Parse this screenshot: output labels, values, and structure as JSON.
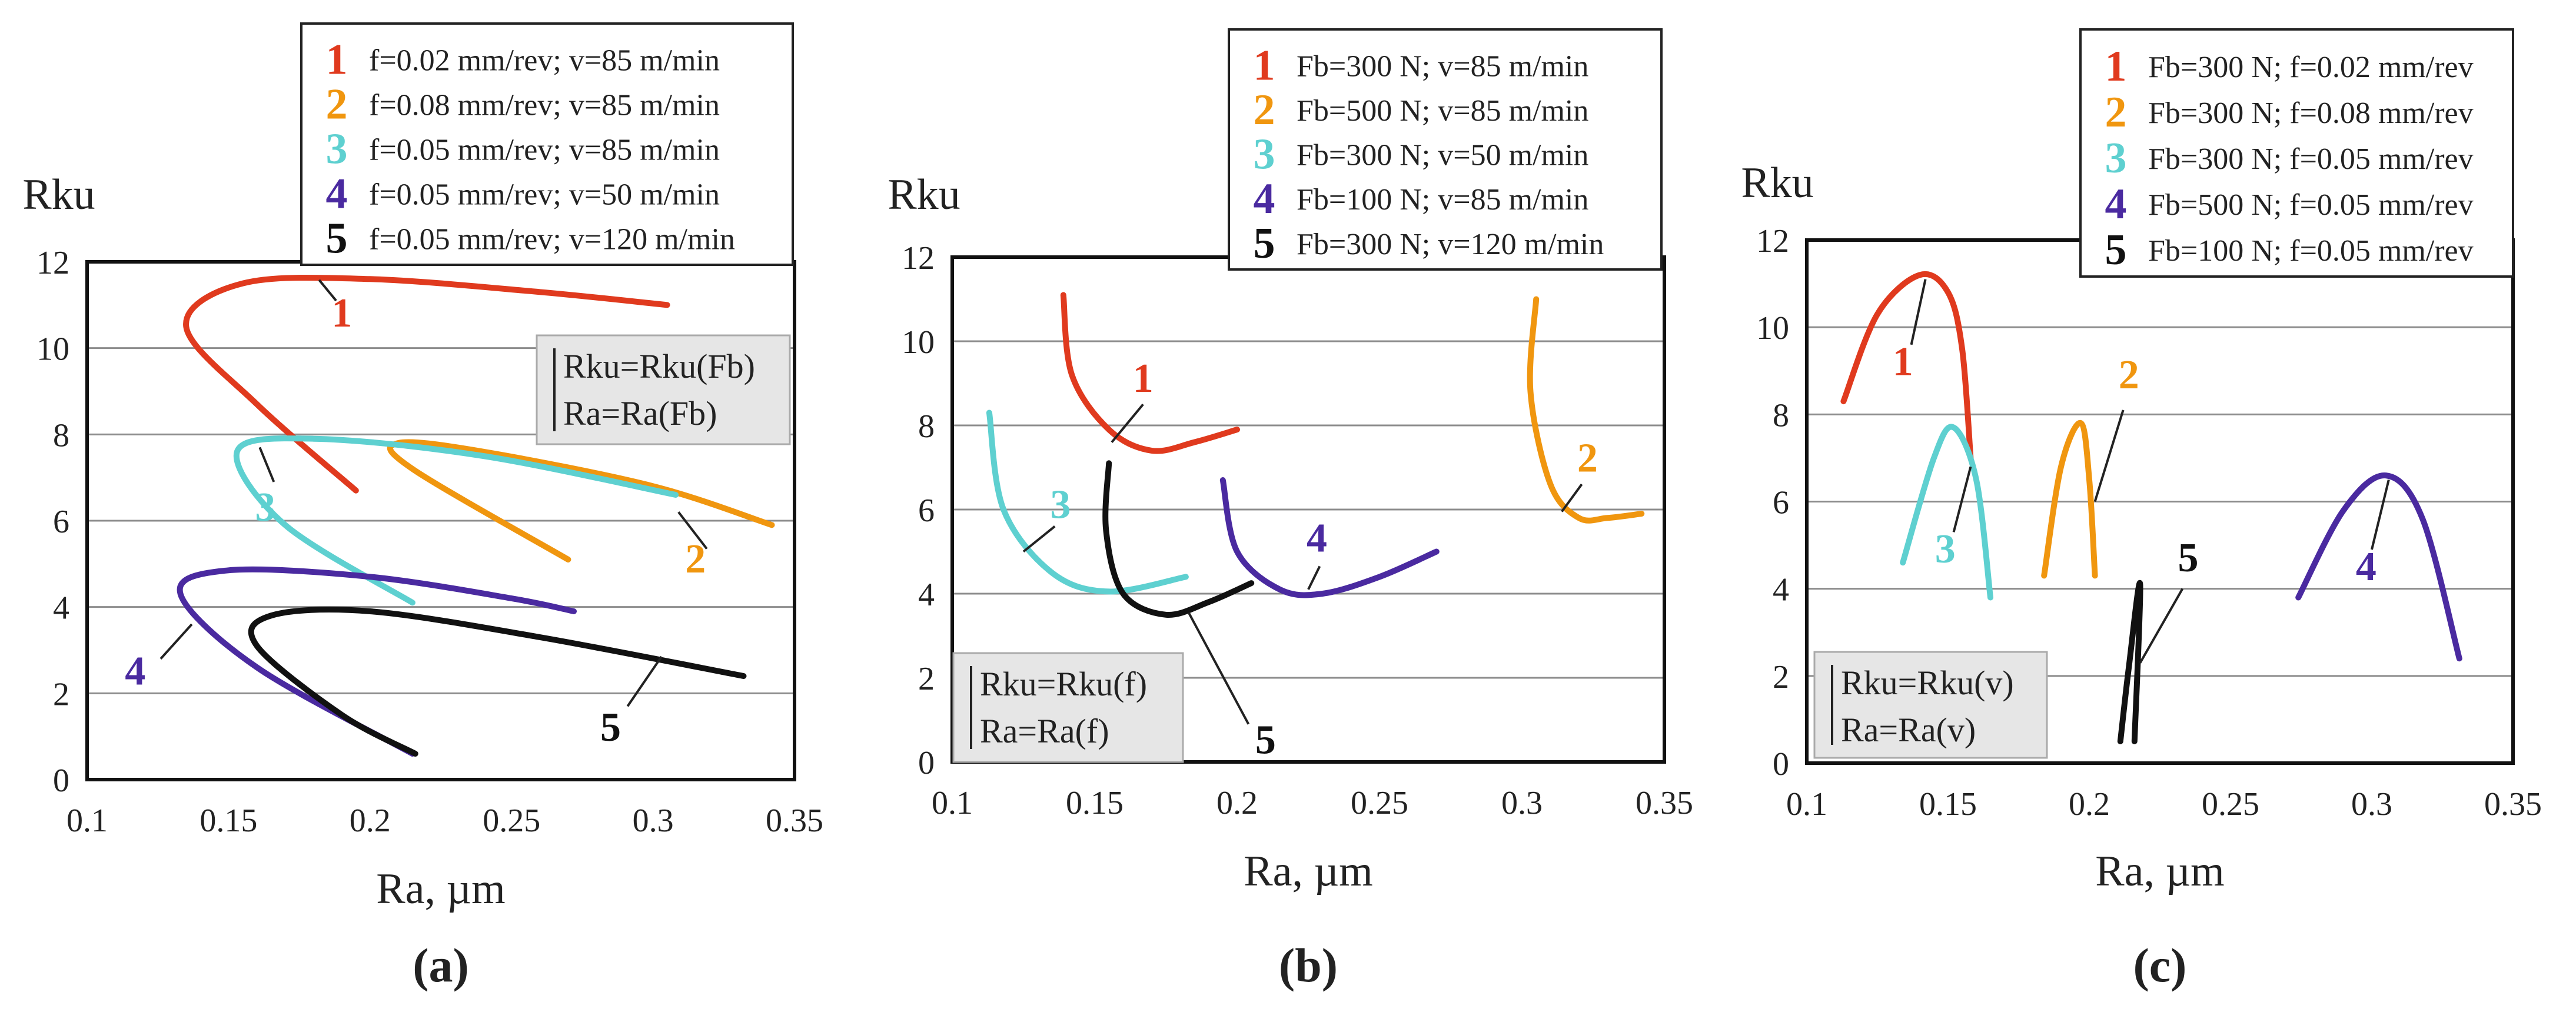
{
  "chart_data": [
    {
      "type": "line",
      "panel_label": "(a)",
      "title": "",
      "ylabel": "Rku",
      "xlabel": "Ra, µm",
      "xlim": [
        0.1,
        0.35
      ],
      "ylim": [
        0,
        12
      ],
      "xticks": [
        "0.1",
        "0.15",
        "0.2",
        "0.25",
        "0.3",
        "0.35"
      ],
      "yticks": [
        "0",
        "2",
        "4",
        "6",
        "8",
        "10",
        "12"
      ],
      "info_lines": [
        "Rku=Rku(Fb)",
        "Ra=Ra(Fb)"
      ],
      "series": [
        {
          "id": "1",
          "name": "f=0.02 mm/rev; v=85 m/min",
          "color": "#e03a1e",
          "points": [
            [
              0.195,
              6.7
            ],
            [
              0.16,
              8.7
            ],
            [
              0.135,
              10.5
            ],
            [
              0.155,
              11.5
            ],
            [
              0.2,
              11.6
            ],
            [
              0.26,
              11.3
            ],
            [
              0.305,
              11.0
            ]
          ],
          "label_at": [
            0.19,
            10.5
          ],
          "leader": [
            [
              0.182,
              11.58
            ],
            [
              0.188,
              11.1
            ]
          ]
        },
        {
          "id": "2",
          "name": "f=0.08 mm/rev; v=85 m/min",
          "color": "#f0960f",
          "points": [
            [
              0.27,
              5.1
            ],
            [
              0.215,
              7.2
            ],
            [
              0.21,
              7.8
            ],
            [
              0.24,
              7.6
            ],
            [
              0.3,
              6.8
            ],
            [
              0.342,
              5.9
            ]
          ],
          "label_at": [
            0.315,
            4.8
          ],
          "leader": [
            [
              0.309,
              6.2
            ],
            [
              0.319,
              5.35
            ]
          ]
        },
        {
          "id": "3",
          "name": "f=0.05 mm/rev; v=85 m/min",
          "color": "#5ed0d0",
          "points": [
            [
              0.215,
              4.1
            ],
            [
              0.17,
              5.9
            ],
            [
              0.153,
              7.6
            ],
            [
              0.18,
              7.9
            ],
            [
              0.24,
              7.5
            ],
            [
              0.308,
              6.6
            ]
          ],
          "label_at": [
            0.163,
            6.0
          ],
          "leader": [
            [
              0.161,
              7.7
            ],
            [
              0.166,
              6.9
            ]
          ]
        },
        {
          "id": "4",
          "name": "f=0.05 mm/rev; v=50 m/min",
          "color": "#4a2aa0",
          "points": [
            [
              0.215,
              0.6
            ],
            [
              0.16,
              2.6
            ],
            [
              0.133,
              4.3
            ],
            [
              0.15,
              4.85
            ],
            [
              0.2,
              4.7
            ],
            [
              0.25,
              4.2
            ],
            [
              0.272,
              3.9
            ]
          ],
          "label_at": [
            0.117,
            2.2
          ],
          "leader": [
            [
              0.126,
              2.8
            ],
            [
              0.137,
              3.6
            ]
          ]
        },
        {
          "id": "5",
          "name": "f=0.05 mm/rev; v=120 m/min",
          "color": "#111111",
          "points": [
            [
              0.216,
              0.6
            ],
            [
              0.19,
              1.5
            ],
            [
              0.16,
              3.1
            ],
            [
              0.165,
              3.8
            ],
            [
              0.2,
              3.9
            ],
            [
              0.26,
              3.3
            ],
            [
              0.332,
              2.4
            ]
          ],
          "label_at": [
            0.285,
            0.9
          ],
          "leader": [
            [
              0.291,
              1.7
            ],
            [
              0.303,
              2.85
            ]
          ]
        }
      ]
    },
    {
      "type": "line",
      "panel_label": "(b)",
      "title": "",
      "ylabel": "Rku",
      "xlabel": "Ra, µm",
      "xlim": [
        0.1,
        0.35
      ],
      "ylim": [
        0,
        12
      ],
      "xticks": [
        "0.1",
        "0.15",
        "0.2",
        "0.25",
        "0.3",
        "0.35"
      ],
      "yticks": [
        "0",
        "2",
        "4",
        "6",
        "8",
        "10",
        "12"
      ],
      "info_lines": [
        "Rku=Rku(f)",
        "Ra=Ra(f)"
      ],
      "series": [
        {
          "id": "1",
          "name": "Fb=300 N; v=85 m/min",
          "color": "#e03a1e",
          "points": [
            [
              0.139,
              11.1
            ],
            [
              0.142,
              9.2
            ],
            [
              0.155,
              7.9
            ],
            [
              0.17,
              7.4
            ],
            [
              0.185,
              7.6
            ],
            [
              0.2,
              7.9
            ]
          ],
          "label_at": [
            0.167,
            8.8
          ],
          "leader": [
            [
              0.167,
              8.5
            ],
            [
              0.156,
              7.6
            ]
          ]
        },
        {
          "id": "2",
          "name": "Fb=500 N; v=85 m/min",
          "color": "#f0960f",
          "points": [
            [
              0.305,
              11.0
            ],
            [
              0.303,
              8.8
            ],
            [
              0.31,
              6.6
            ],
            [
              0.32,
              5.8
            ],
            [
              0.33,
              5.8
            ],
            [
              0.342,
              5.9
            ]
          ],
          "label_at": [
            0.323,
            6.9
          ],
          "leader": [
            [
              0.321,
              6.6
            ],
            [
              0.314,
              5.95
            ]
          ]
        },
        {
          "id": "3",
          "name": "Fb=300 N; v=50 m/min",
          "color": "#5ed0d0",
          "points": [
            [
              0.113,
              8.3
            ],
            [
              0.118,
              6.0
            ],
            [
              0.135,
              4.5
            ],
            [
              0.155,
              4.05
            ],
            [
              0.182,
              4.4
            ]
          ],
          "label_at": [
            0.138,
            5.8
          ],
          "leader": [
            [
              0.136,
              5.6
            ],
            [
              0.125,
              5.0
            ]
          ]
        },
        {
          "id": "4",
          "name": "Fb=100 N; v=85 m/min",
          "color": "#4a2aa0",
          "points": [
            [
              0.195,
              6.7
            ],
            [
              0.2,
              5.0
            ],
            [
              0.215,
              4.1
            ],
            [
              0.23,
              4.0
            ],
            [
              0.25,
              4.4
            ],
            [
              0.27,
              5.0
            ]
          ],
          "label_at": [
            0.228,
            5.0
          ],
          "leader": [
            [
              0.229,
              4.65
            ],
            [
              0.225,
              4.1
            ]
          ]
        },
        {
          "id": "5",
          "name": "Fb=300 N; v=120 m/min",
          "color": "#111111",
          "points": [
            [
              0.155,
              7.1
            ],
            [
              0.154,
              5.5
            ],
            [
              0.16,
              4.0
            ],
            [
              0.175,
              3.5
            ],
            [
              0.19,
              3.8
            ],
            [
              0.205,
              4.25
            ]
          ],
          "label_at": [
            0.21,
            0.2
          ],
          "leader": [
            [
              0.183,
              3.55
            ],
            [
              0.204,
              0.9
            ]
          ]
        }
      ]
    },
    {
      "type": "line",
      "panel_label": "(c)",
      "title": "",
      "ylabel": "Rku",
      "xlabel": "Ra, µm",
      "xlim": [
        0.1,
        0.35
      ],
      "ylim": [
        0,
        12
      ],
      "xticks": [
        "0.1",
        "0.15",
        "0.2",
        "0.25",
        "0.3",
        "0.35"
      ],
      "yticks": [
        "0",
        "2",
        "4",
        "6",
        "8",
        "10",
        "12"
      ],
      "info_lines": [
        "Rku=Rku(v)",
        "Ra=Ra(v)"
      ],
      "series": [
        {
          "id": "1",
          "name": "Fb=300 N; f=0.02 mm/rev",
          "color": "#e03a1e",
          "points": [
            [
              0.113,
              8.3
            ],
            [
              0.125,
              10.3
            ],
            [
              0.14,
              11.2
            ],
            [
              0.15,
              10.8
            ],
            [
              0.155,
              9.5
            ],
            [
              0.158,
              7.0
            ]
          ],
          "label_at": [
            0.134,
            8.9
          ],
          "leader": [
            [
              0.137,
              9.6
            ],
            [
              0.142,
              11.1
            ]
          ]
        },
        {
          "id": "2",
          "name": "Fb=300 N; f=0.08 mm/rev",
          "color": "#f0960f",
          "points": [
            [
              0.184,
              4.3
            ],
            [
              0.19,
              6.8
            ],
            [
              0.197,
              7.8
            ],
            [
              0.2,
              6.5
            ],
            [
              0.202,
              4.3
            ]
          ],
          "label_at": [
            0.214,
            8.6
          ],
          "leader": [
            [
              0.212,
              8.1
            ],
            [
              0.202,
              6.0
            ]
          ]
        },
        {
          "id": "3",
          "name": "Fb=300 N; f=0.05 mm/rev",
          "color": "#5ed0d0",
          "points": [
            [
              0.134,
              4.6
            ],
            [
              0.145,
              7.0
            ],
            [
              0.152,
              7.7
            ],
            [
              0.16,
              6.5
            ],
            [
              0.165,
              3.8
            ]
          ],
          "label_at": [
            0.149,
            4.6
          ],
          "leader": [
            [
              0.152,
              5.3
            ],
            [
              0.158,
              6.8
            ]
          ]
        },
        {
          "id": "4",
          "name": "Fb=500 N; f=0.05 mm/rev",
          "color": "#4a2aa0",
          "points": [
            [
              0.274,
              3.8
            ],
            [
              0.29,
              5.8
            ],
            [
              0.305,
              6.6
            ],
            [
              0.318,
              5.6
            ],
            [
              0.331,
              2.4
            ]
          ],
          "label_at": [
            0.298,
            4.2
          ],
          "leader": [
            [
              0.3,
              4.9
            ],
            [
              0.306,
              6.5
            ]
          ]
        },
        {
          "id": "5",
          "name": "Fb=100 N; f=0.05 mm/rev",
          "color": "#111111",
          "points": [
            [
              0.211,
              0.5
            ],
            [
              0.214,
              2.2
            ],
            [
              0.218,
              4.1
            ],
            [
              0.216,
              0.5
            ]
          ],
          "label_at": [
            0.235,
            4.4
          ],
          "leader": [
            [
              0.233,
              4.0
            ],
            [
              0.218,
              2.3
            ]
          ]
        }
      ]
    }
  ]
}
